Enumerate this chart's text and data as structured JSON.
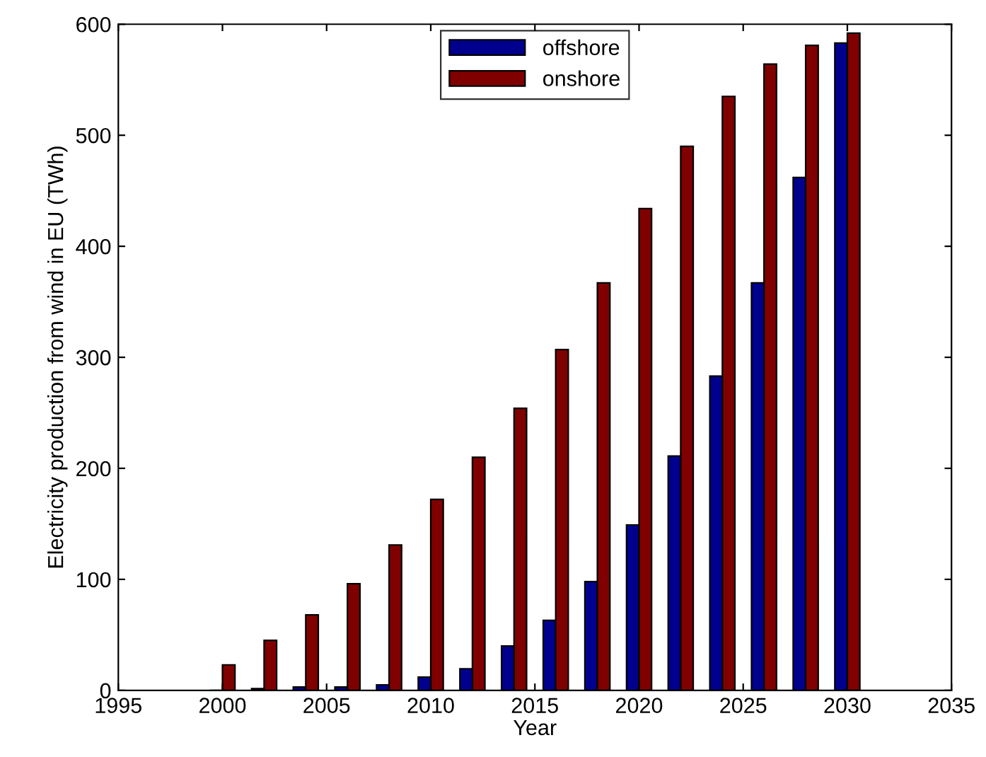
{
  "chart_data": {
    "type": "bar",
    "xlabel": "Year",
    "ylabel": "Electricity production from wind in EU (TWh)",
    "x": [
      2000,
      2002,
      2004,
      2006,
      2008,
      2010,
      2012,
      2014,
      2016,
      2018,
      2020,
      2022,
      2024,
      2026,
      2028,
      2030
    ],
    "series": [
      {
        "name": "offshore",
        "color": "#00008f",
        "values": [
          0,
          1.5,
          3,
          3,
          5,
          12,
          19.5,
          40,
          63,
          98,
          149,
          211,
          283,
          367,
          462,
          583
        ]
      },
      {
        "name": "onshore",
        "color": "#800000",
        "values": [
          23,
          45,
          68,
          96,
          131,
          172,
          210,
          254,
          307,
          367,
          434,
          490,
          535,
          564,
          581,
          592
        ]
      }
    ],
    "xlim": [
      1995,
      2035
    ],
    "xticks": [
      1995,
      2000,
      2005,
      2010,
      2015,
      2020,
      2025,
      2030,
      2035
    ],
    "ylim": [
      0,
      600
    ],
    "yticks": [
      0,
      100,
      200,
      300,
      400,
      500,
      600
    ],
    "grid": false,
    "legend": "top"
  }
}
